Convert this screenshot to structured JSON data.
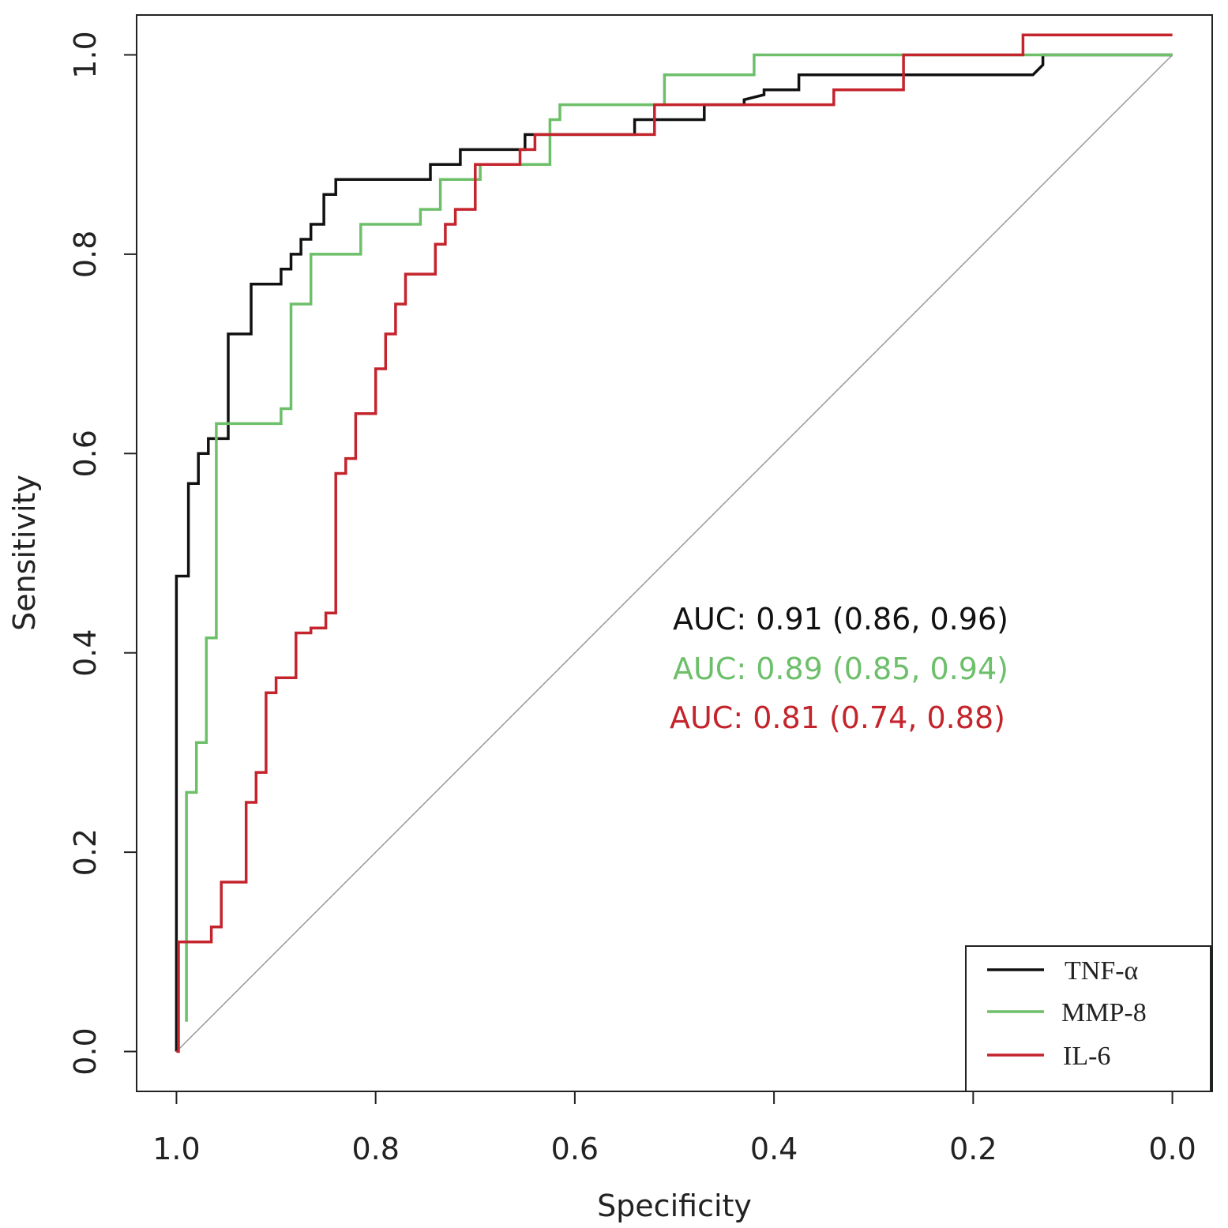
{
  "chart_data": {
    "type": "line",
    "title": "",
    "xlabel": "Specificity",
    "ylabel": "Sensitivity",
    "xlim": [
      1.04,
      -0.04
    ],
    "ylim": [
      -0.04,
      1.04
    ],
    "x_ticks": [
      "1.0",
      "0.8",
      "0.6",
      "0.4",
      "0.2",
      "0.0"
    ],
    "y_ticks": [
      "0.0",
      "0.2",
      "0.4",
      "0.6",
      "0.8",
      "1.0"
    ],
    "x_tick_values": [
      1.0,
      0.8,
      0.6,
      0.4,
      0.2,
      0.0
    ],
    "y_tick_values": [
      0.0,
      0.2,
      0.4,
      0.6,
      0.8,
      1.0
    ],
    "reference_line": {
      "from": [
        1.0,
        0.0
      ],
      "to": [
        0.0,
        1.0
      ],
      "color": "#999999"
    },
    "annotations": [
      {
        "text": "AUC: 0.91 (0.86, 0.96)",
        "color": "#111111"
      },
      {
        "text": "AUC: 0.89 (0.85, 0.94)",
        "color": "#6dbf6a"
      },
      {
        "text": "AUC: 0.81 (0.74, 0.88)",
        "color": "#c4242c"
      }
    ],
    "legend": {
      "position": "bottom-right",
      "entries": [
        "TNF-α",
        "MMP-8",
        "IL-6"
      ]
    },
    "series": [
      {
        "name": "TNF-α",
        "color": "#111111",
        "points": [
          [
            1.0,
            0.0
          ],
          [
            1.0,
            0.477
          ],
          [
            0.988,
            0.477
          ],
          [
            0.988,
            0.57
          ],
          [
            0.978,
            0.57
          ],
          [
            0.978,
            0.6
          ],
          [
            0.968,
            0.6
          ],
          [
            0.968,
            0.615
          ],
          [
            0.948,
            0.615
          ],
          [
            0.948,
            0.72
          ],
          [
            0.925,
            0.72
          ],
          [
            0.925,
            0.77
          ],
          [
            0.895,
            0.77
          ],
          [
            0.895,
            0.785
          ],
          [
            0.885,
            0.785
          ],
          [
            0.885,
            0.8
          ],
          [
            0.875,
            0.8
          ],
          [
            0.875,
            0.815
          ],
          [
            0.865,
            0.815
          ],
          [
            0.865,
            0.83
          ],
          [
            0.852,
            0.83
          ],
          [
            0.852,
            0.86
          ],
          [
            0.84,
            0.86
          ],
          [
            0.84,
            0.875
          ],
          [
            0.745,
            0.875
          ],
          [
            0.745,
            0.89
          ],
          [
            0.715,
            0.89
          ],
          [
            0.715,
            0.905
          ],
          [
            0.65,
            0.905
          ],
          [
            0.65,
            0.92
          ],
          [
            0.645,
            0.92
          ],
          [
            0.635,
            0.92
          ],
          [
            0.635,
            0.92
          ],
          [
            0.54,
            0.92
          ],
          [
            0.54,
            0.935
          ],
          [
            0.47,
            0.935
          ],
          [
            0.47,
            0.95
          ],
          [
            0.43,
            0.95
          ],
          [
            0.43,
            0.955
          ],
          [
            0.41,
            0.96
          ],
          [
            0.41,
            0.965
          ],
          [
            0.375,
            0.965
          ],
          [
            0.375,
            0.98
          ],
          [
            0.14,
            0.98
          ],
          [
            0.13,
            0.99
          ],
          [
            0.13,
            1.0
          ],
          [
            0.0,
            1.0
          ]
        ]
      },
      {
        "name": "MMP-8",
        "color": "#6dbf6a",
        "points": [
          [
            0.99,
            0.03
          ],
          [
            0.99,
            0.26
          ],
          [
            0.98,
            0.26
          ],
          [
            0.98,
            0.31
          ],
          [
            0.97,
            0.31
          ],
          [
            0.97,
            0.415
          ],
          [
            0.96,
            0.415
          ],
          [
            0.96,
            0.63
          ],
          [
            0.895,
            0.63
          ],
          [
            0.895,
            0.645
          ],
          [
            0.885,
            0.645
          ],
          [
            0.885,
            0.75
          ],
          [
            0.865,
            0.75
          ],
          [
            0.865,
            0.8
          ],
          [
            0.815,
            0.8
          ],
          [
            0.815,
            0.83
          ],
          [
            0.755,
            0.83
          ],
          [
            0.755,
            0.845
          ],
          [
            0.735,
            0.845
          ],
          [
            0.735,
            0.875
          ],
          [
            0.695,
            0.875
          ],
          [
            0.695,
            0.89
          ],
          [
            0.625,
            0.89
          ],
          [
            0.625,
            0.935
          ],
          [
            0.615,
            0.935
          ],
          [
            0.615,
            0.95
          ],
          [
            0.51,
            0.95
          ],
          [
            0.51,
            0.98
          ],
          [
            0.42,
            0.98
          ],
          [
            0.42,
            1.0
          ],
          [
            0.0,
            1.0
          ]
        ]
      },
      {
        "name": "IL-6",
        "color": "#c4242c",
        "points": [
          [
            1.0,
            0.0
          ],
          [
            0.998,
            0.0
          ],
          [
            0.998,
            0.11
          ],
          [
            0.965,
            0.11
          ],
          [
            0.965,
            0.125
          ],
          [
            0.955,
            0.125
          ],
          [
            0.955,
            0.17
          ],
          [
            0.93,
            0.17
          ],
          [
            0.93,
            0.25
          ],
          [
            0.92,
            0.25
          ],
          [
            0.92,
            0.28
          ],
          [
            0.91,
            0.28
          ],
          [
            0.91,
            0.36
          ],
          [
            0.9,
            0.36
          ],
          [
            0.9,
            0.375
          ],
          [
            0.88,
            0.375
          ],
          [
            0.88,
            0.42
          ],
          [
            0.865,
            0.42
          ],
          [
            0.865,
            0.425
          ],
          [
            0.85,
            0.425
          ],
          [
            0.85,
            0.44
          ],
          [
            0.84,
            0.44
          ],
          [
            0.84,
            0.58
          ],
          [
            0.83,
            0.58
          ],
          [
            0.83,
            0.595
          ],
          [
            0.82,
            0.595
          ],
          [
            0.82,
            0.64
          ],
          [
            0.8,
            0.64
          ],
          [
            0.8,
            0.685
          ],
          [
            0.79,
            0.685
          ],
          [
            0.79,
            0.72
          ],
          [
            0.78,
            0.72
          ],
          [
            0.78,
            0.75
          ],
          [
            0.77,
            0.75
          ],
          [
            0.77,
            0.78
          ],
          [
            0.74,
            0.78
          ],
          [
            0.74,
            0.81
          ],
          [
            0.73,
            0.81
          ],
          [
            0.73,
            0.83
          ],
          [
            0.72,
            0.83
          ],
          [
            0.72,
            0.845
          ],
          [
            0.7,
            0.845
          ],
          [
            0.7,
            0.89
          ],
          [
            0.655,
            0.89
          ],
          [
            0.655,
            0.905
          ],
          [
            0.64,
            0.905
          ],
          [
            0.64,
            0.92
          ],
          [
            0.52,
            0.92
          ],
          [
            0.52,
            0.95
          ],
          [
            0.34,
            0.95
          ],
          [
            0.34,
            0.965
          ],
          [
            0.27,
            0.965
          ],
          [
            0.27,
            1.0
          ],
          [
            0.15,
            1.0
          ],
          [
            0.15,
            1.02
          ],
          [
            0.0,
            1.02
          ]
        ]
      }
    ]
  }
}
